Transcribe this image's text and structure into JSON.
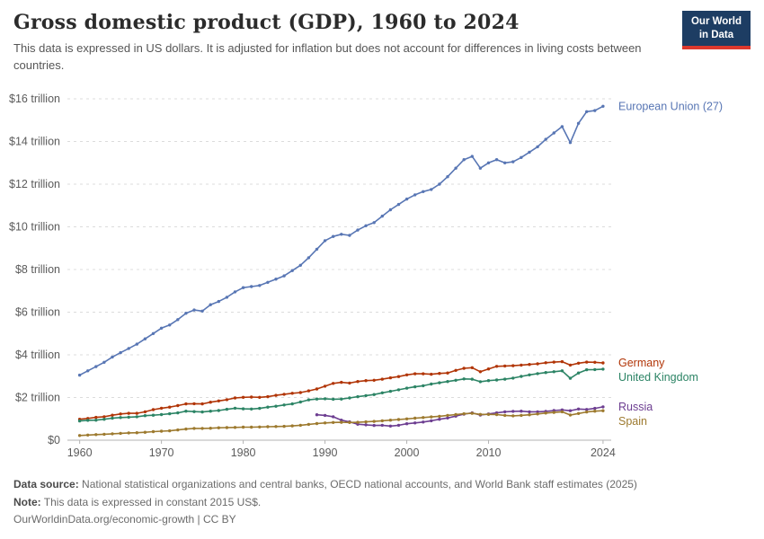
{
  "header": {
    "title": "Gross domestic product (GDP), 1960 to 2024",
    "subtitle": "This data is expressed in US dollars. It is adjusted for inflation but does not account for differences in living costs between countries.",
    "logo": {
      "line1": "Our World",
      "line2": "in Data",
      "bg_color": "#1d3d63",
      "accent_color": "#dc382d"
    }
  },
  "footer": {
    "source_label": "Data source:",
    "source_text": " National statistical organizations and central banks, OECD national accounts, and World Bank staff estimates (2025)",
    "note_label": "Note:",
    "note_text": " This data is expressed in constant 2015 US$.",
    "link_text": "OurWorldinData.org/economic-growth | CC BY"
  },
  "chart_data": {
    "type": "line",
    "title": "Gross domestic product (GDP), 1960 to 2024",
    "xlabel": "",
    "ylabel": "",
    "unit": "trillion constant 2015 US$",
    "xlim": [
      1958.5,
      2025
    ],
    "ylim": [
      0,
      16
    ],
    "grid": "dashed-horizontal",
    "legend_position": "right-end-labels",
    "yticks": [
      {
        "v": 0,
        "label": "$0"
      },
      {
        "v": 2,
        "label": "$2 trillion"
      },
      {
        "v": 4,
        "label": "$4 trillion"
      },
      {
        "v": 6,
        "label": "$6 trillion"
      },
      {
        "v": 8,
        "label": "$8 trillion"
      },
      {
        "v": 10,
        "label": "$10 trillion"
      },
      {
        "v": 12,
        "label": "$12 trillion"
      },
      {
        "v": 14,
        "label": "$14 trillion"
      },
      {
        "v": 16,
        "label": "$16 trillion"
      }
    ],
    "xticks": [
      {
        "v": 1960,
        "label": "1960"
      },
      {
        "v": 1970,
        "label": "1970"
      },
      {
        "v": 1980,
        "label": "1980"
      },
      {
        "v": 1990,
        "label": "1990"
      },
      {
        "v": 2000,
        "label": "2000"
      },
      {
        "v": 2010,
        "label": "2010"
      },
      {
        "v": 2024,
        "label": "2024"
      }
    ],
    "series": [
      {
        "name": "European Union (27)",
        "color": "#5876b4",
        "start_year": 1960,
        "values": [
          3.05,
          3.25,
          3.45,
          3.65,
          3.9,
          4.1,
          4.3,
          4.5,
          4.75,
          5.0,
          5.25,
          5.4,
          5.65,
          5.95,
          6.1,
          6.05,
          6.35,
          6.5,
          6.7,
          6.95,
          7.15,
          7.2,
          7.25,
          7.4,
          7.55,
          7.7,
          7.95,
          8.2,
          8.55,
          8.95,
          9.35,
          9.55,
          9.65,
          9.6,
          9.85,
          10.05,
          10.2,
          10.5,
          10.8,
          11.05,
          11.3,
          11.5,
          11.65,
          11.75,
          12.0,
          12.35,
          12.75,
          13.15,
          13.3,
          12.75,
          13.0,
          13.15,
          13.0,
          13.05,
          13.25,
          13.5,
          13.75,
          14.1,
          14.4,
          14.7,
          13.95,
          14.85,
          15.4,
          15.45,
          15.65
        ]
      },
      {
        "name": "Germany",
        "color": "#b13507",
        "start_year": 1960,
        "values": [
          0.98,
          1.02,
          1.07,
          1.1,
          1.17,
          1.23,
          1.26,
          1.26,
          1.33,
          1.43,
          1.5,
          1.55,
          1.62,
          1.7,
          1.71,
          1.7,
          1.78,
          1.84,
          1.9,
          1.98,
          2.01,
          2.02,
          2.01,
          2.04,
          2.1,
          2.15,
          2.2,
          2.23,
          2.31,
          2.4,
          2.53,
          2.66,
          2.71,
          2.68,
          2.75,
          2.79,
          2.81,
          2.86,
          2.92,
          2.98,
          3.06,
          3.11,
          3.11,
          3.09,
          3.13,
          3.15,
          3.27,
          3.37,
          3.4,
          3.21,
          3.34,
          3.46,
          3.48,
          3.49,
          3.52,
          3.55,
          3.58,
          3.63,
          3.66,
          3.68,
          3.52,
          3.61,
          3.66,
          3.65,
          3.62
        ]
      },
      {
        "name": "United Kingdom",
        "color": "#2c8465",
        "start_year": 1960,
        "values": [
          0.9,
          0.93,
          0.94,
          0.98,
          1.03,
          1.06,
          1.08,
          1.1,
          1.15,
          1.17,
          1.2,
          1.24,
          1.28,
          1.36,
          1.34,
          1.32,
          1.36,
          1.39,
          1.45,
          1.5,
          1.47,
          1.46,
          1.49,
          1.55,
          1.59,
          1.65,
          1.7,
          1.79,
          1.89,
          1.93,
          1.94,
          1.92,
          1.93,
          1.98,
          2.04,
          2.09,
          2.14,
          2.22,
          2.29,
          2.36,
          2.44,
          2.5,
          2.55,
          2.63,
          2.69,
          2.75,
          2.81,
          2.87,
          2.86,
          2.74,
          2.79,
          2.82,
          2.86,
          2.91,
          2.99,
          3.06,
          3.12,
          3.17,
          3.21,
          3.25,
          2.9,
          3.15,
          3.3,
          3.31,
          3.33
        ]
      },
      {
        "name": "Russia",
        "color": "#6d3e91",
        "start_year": 1989,
        "values": [
          1.19,
          1.16,
          1.1,
          0.94,
          0.86,
          0.75,
          0.72,
          0.69,
          0.7,
          0.66,
          0.7,
          0.77,
          0.81,
          0.85,
          0.91,
          0.98,
          1.04,
          1.13,
          1.22,
          1.28,
          1.18,
          1.23,
          1.28,
          1.33,
          1.35,
          1.36,
          1.33,
          1.33,
          1.35,
          1.39,
          1.42,
          1.38,
          1.46,
          1.44,
          1.49,
          1.56
        ]
      },
      {
        "name": "Spain",
        "color": "#9d7a2f",
        "start_year": 1960,
        "values": [
          0.22,
          0.24,
          0.26,
          0.28,
          0.3,
          0.32,
          0.34,
          0.35,
          0.37,
          0.4,
          0.42,
          0.44,
          0.48,
          0.52,
          0.55,
          0.55,
          0.56,
          0.58,
          0.59,
          0.6,
          0.61,
          0.61,
          0.62,
          0.63,
          0.64,
          0.65,
          0.67,
          0.7,
          0.74,
          0.78,
          0.81,
          0.83,
          0.84,
          0.83,
          0.84,
          0.86,
          0.88,
          0.91,
          0.94,
          0.97,
          1.0,
          1.03,
          1.06,
          1.09,
          1.12,
          1.16,
          1.2,
          1.24,
          1.26,
          1.21,
          1.21,
          1.2,
          1.16,
          1.14,
          1.16,
          1.19,
          1.23,
          1.27,
          1.3,
          1.33,
          1.18,
          1.25,
          1.32,
          1.36,
          1.38
        ]
      }
    ]
  }
}
